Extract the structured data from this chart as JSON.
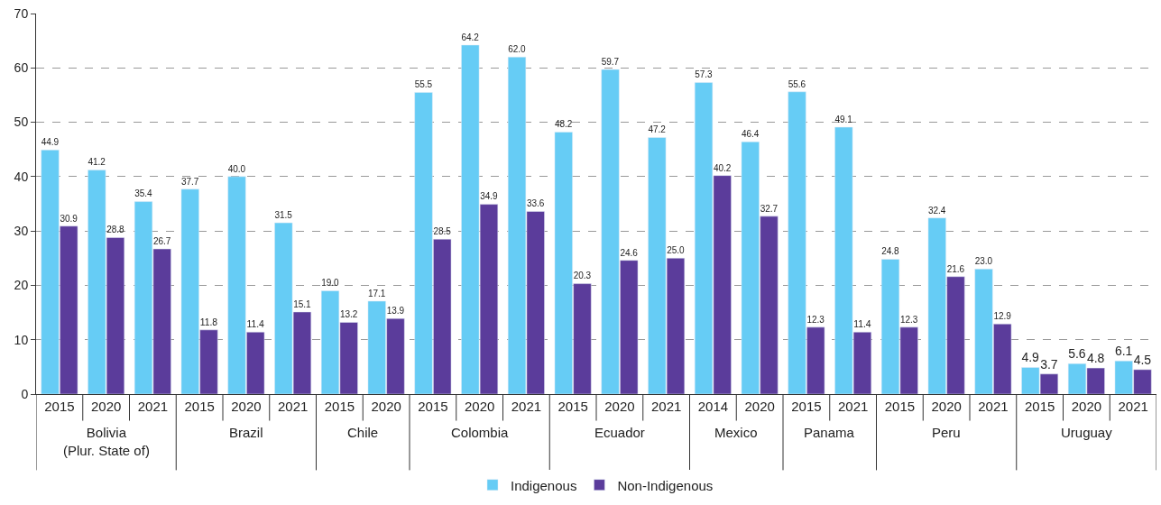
{
  "chart_data": {
    "type": "bar",
    "categories": [
      [
        "Bolivia\n(Plur. State of)",
        "2015"
      ],
      [
        null,
        "2020"
      ],
      [
        null,
        "2021"
      ],
      [
        "Brazil",
        "2015"
      ],
      [
        null,
        "2020"
      ],
      [
        null,
        "2021"
      ],
      [
        "Chile",
        "2015"
      ],
      [
        null,
        "2020"
      ],
      [
        "Colombia",
        "2015"
      ],
      [
        null,
        "2020"
      ],
      [
        null,
        "2021"
      ],
      [
        "Ecuador",
        "2015"
      ],
      [
        null,
        "2020"
      ],
      [
        null,
        "2021"
      ],
      [
        "Mexico",
        "2014"
      ],
      [
        null,
        "2020"
      ],
      [
        "Panama",
        "2015"
      ],
      [
        null,
        "2021"
      ],
      [
        "Peru",
        "2015"
      ],
      [
        null,
        "2020"
      ],
      [
        null,
        "2021"
      ],
      [
        "Uruguay",
        "2015"
      ],
      [
        null,
        "2020"
      ],
      [
        null,
        "2021"
      ]
    ],
    "series": [
      {
        "name": "Indigenous",
        "color": "#66ccf5",
        "values": [
          44.9,
          41.2,
          35.4,
          37.7,
          40.0,
          31.5,
          19.0,
          17.1,
          55.5,
          64.2,
          62.0,
          48.2,
          59.7,
          47.2,
          57.3,
          46.4,
          55.6,
          49.1,
          24.8,
          32.4,
          23.0,
          4.9,
          5.6,
          6.1
        ],
        "value_labels": [
          "44.9",
          "41.2",
          "35.4",
          "37.7",
          "40.0",
          "31.5",
          "19.0",
          "17.1",
          "55.5",
          "64.2",
          "62.0",
          "48.2",
          "59.7",
          "47.2",
          "57.3",
          "46.4",
          "55.6",
          "49.1",
          "24.8",
          "32.4",
          "23.0",
          "4.9",
          "5.6",
          "6.1"
        ]
      },
      {
        "name": "Non-Indigenous",
        "color": "#5b3c9b",
        "values": [
          30.9,
          28.8,
          26.7,
          11.8,
          11.4,
          15.1,
          13.2,
          13.9,
          28.5,
          34.9,
          33.6,
          20.3,
          24.6,
          25.0,
          40.2,
          32.7,
          12.3,
          11.4,
          12.3,
          21.6,
          12.9,
          3.7,
          4.8,
          4.5
        ],
        "value_labels": [
          "30.9",
          "28.8",
          "26.7",
          "11.8",
          "11.4",
          "15.1",
          "13.2",
          "13.9",
          "28.5",
          "34.9",
          "33.6",
          "20.3",
          "24.6",
          "25.0",
          "40.2",
          "32.7",
          "12.3",
          "11.4",
          "12.3",
          "21.6",
          "12.9",
          "3.7",
          "4.8",
          "4.5"
        ]
      }
    ],
    "ylim": [
      0,
      70
    ],
    "yticks": [
      0,
      10,
      20,
      30,
      40,
      50,
      60,
      70
    ],
    "grid": "y",
    "legend": "bottom"
  }
}
